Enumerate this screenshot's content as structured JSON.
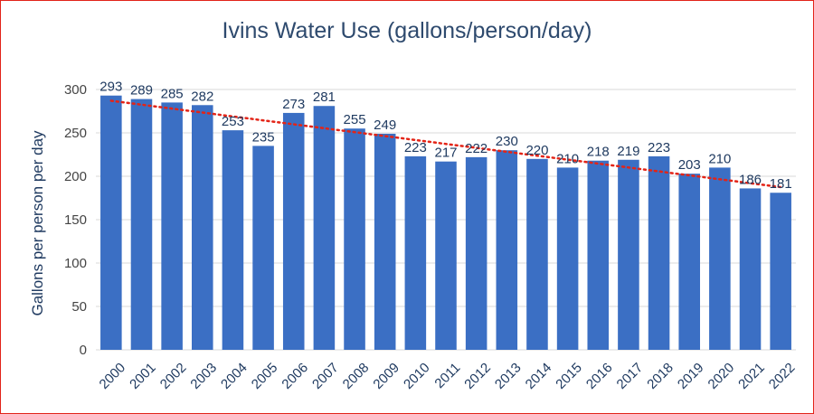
{
  "chart_data": {
    "type": "bar",
    "title": "Ivins Water Use (gallons/person/day)",
    "xlabel": "",
    "ylabel": "Gallons per person per day",
    "categories": [
      "2000",
      "2001",
      "2002",
      "2003",
      "2004",
      "2005",
      "2006",
      "2007",
      "2008",
      "2009",
      "2010",
      "2011",
      "2012",
      "2013",
      "2014",
      "2015",
      "2016",
      "2017",
      "2018",
      "2019",
      "2020",
      "2021",
      "2022"
    ],
    "values": [
      293,
      289,
      285,
      282,
      253,
      235,
      273,
      281,
      255,
      249,
      223,
      217,
      222,
      230,
      220,
      210,
      218,
      219,
      223,
      203,
      210,
      186,
      181
    ],
    "ylim": [
      0,
      300
    ],
    "yticks": [
      0,
      50,
      100,
      150,
      200,
      250,
      300
    ],
    "grid": true,
    "data_labels": true,
    "trendline": "linear",
    "colors": {
      "bar": "#3b6fc4",
      "trendline": "#e32417",
      "grid": "#d9d9d9",
      "frame": "#e2231a"
    }
  }
}
